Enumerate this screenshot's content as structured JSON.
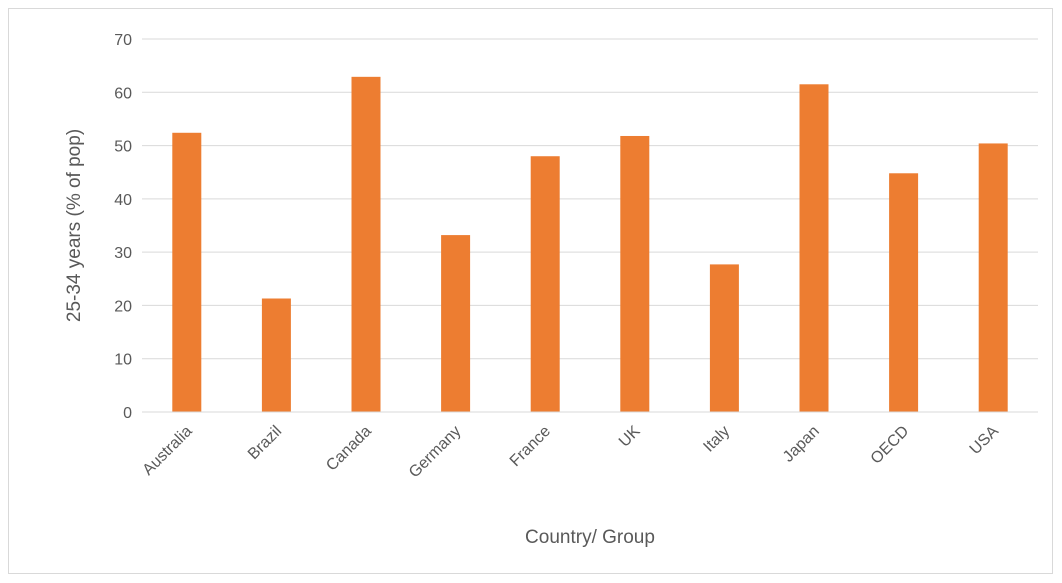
{
  "chart_data": {
    "type": "bar",
    "title": "",
    "xlabel": "Country/ Group",
    "ylabel": "25-34 years (% of pop)",
    "categories": [
      "Australia",
      "Brazil",
      "Canada",
      "Germany",
      "France",
      "UK",
      "Italy",
      "Japan",
      "OECD",
      "USA"
    ],
    "values": [
      52.4,
      21.3,
      62.9,
      33.2,
      48.0,
      51.8,
      27.7,
      61.5,
      44.8,
      50.4
    ],
    "ylim": [
      0,
      70
    ],
    "yticks": [
      0,
      10,
      20,
      30,
      40,
      50,
      60,
      70
    ],
    "grid": true,
    "legend": "none",
    "bar_color": "#ED7D31",
    "gridline_color": "#D9D9D9",
    "text_color": "#595959"
  }
}
